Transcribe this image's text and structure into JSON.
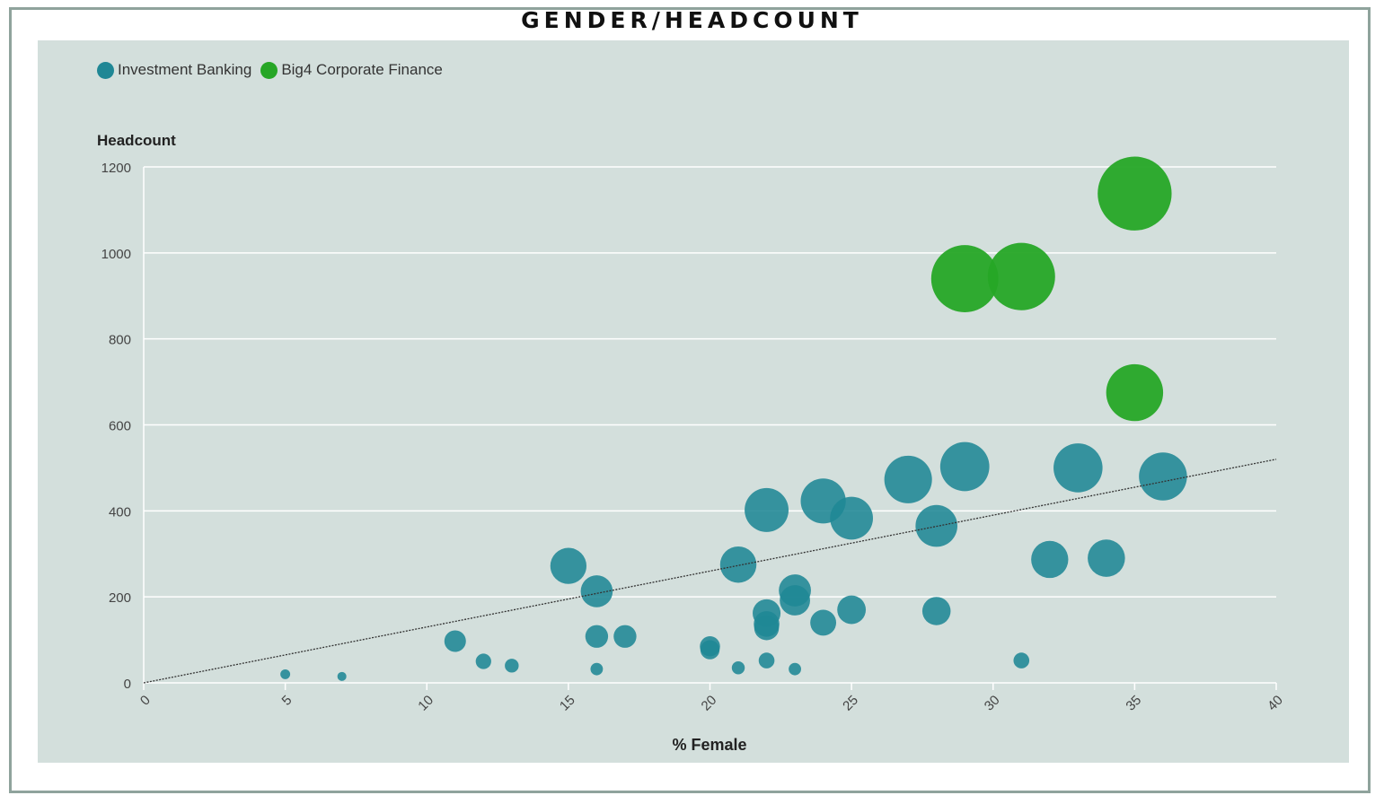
{
  "title": "GENDER/HEADCOUNT",
  "colors": {
    "investment_banking": "#1f8795",
    "big4": "#26a626",
    "trend": "#333333",
    "panel": "#d3dfdc",
    "grid": "#ffffff"
  },
  "chart_data": {
    "type": "scatter",
    "title": "GENDER/HEADCOUNT",
    "xlabel": "% Female",
    "ylabel": "Headcount",
    "xlim": [
      0,
      40
    ],
    "ylim": [
      0,
      1200
    ],
    "x_ticks": [
      "0",
      "5",
      "10",
      "15",
      "20",
      "25",
      "30",
      "35",
      "40"
    ],
    "y_ticks": [
      "0",
      "200",
      "400",
      "600",
      "800",
      "1000",
      "1200"
    ],
    "grid": true,
    "legend_position": "top-left",
    "bubble_size_encodes": "headcount",
    "trendline": {
      "x": [
        0,
        40
      ],
      "y": [
        0,
        520
      ]
    },
    "series": [
      {
        "name": "Investment Banking",
        "color": "#1f8795",
        "points": [
          {
            "x": 5,
            "y": 20
          },
          {
            "x": 7,
            "y": 15
          },
          {
            "x": 11,
            "y": 97
          },
          {
            "x": 12,
            "y": 50
          },
          {
            "x": 13,
            "y": 40
          },
          {
            "x": 15,
            "y": 272
          },
          {
            "x": 16,
            "y": 213
          },
          {
            "x": 16,
            "y": 108
          },
          {
            "x": 16,
            "y": 32
          },
          {
            "x": 17,
            "y": 108
          },
          {
            "x": 20,
            "y": 85
          },
          {
            "x": 20,
            "y": 77
          },
          {
            "x": 21,
            "y": 275
          },
          {
            "x": 21,
            "y": 35
          },
          {
            "x": 22,
            "y": 402
          },
          {
            "x": 22,
            "y": 162
          },
          {
            "x": 22,
            "y": 137
          },
          {
            "x": 22,
            "y": 128
          },
          {
            "x": 22,
            "y": 52
          },
          {
            "x": 23,
            "y": 215
          },
          {
            "x": 23,
            "y": 192
          },
          {
            "x": 23,
            "y": 32
          },
          {
            "x": 24,
            "y": 423
          },
          {
            "x": 24,
            "y": 140
          },
          {
            "x": 25,
            "y": 383
          },
          {
            "x": 25,
            "y": 170
          },
          {
            "x": 27,
            "y": 473
          },
          {
            "x": 28,
            "y": 365
          },
          {
            "x": 28,
            "y": 167
          },
          {
            "x": 29,
            "y": 503
          },
          {
            "x": 31,
            "y": 52
          },
          {
            "x": 32,
            "y": 287
          },
          {
            "x": 33,
            "y": 500
          },
          {
            "x": 34,
            "y": 290
          },
          {
            "x": 36,
            "y": 480
          }
        ]
      },
      {
        "name": "Big4 Corporate Finance",
        "color": "#26a626",
        "points": [
          {
            "x": 29,
            "y": 940
          },
          {
            "x": 31,
            "y": 945
          },
          {
            "x": 35,
            "y": 1138
          },
          {
            "x": 35,
            "y": 675
          }
        ]
      }
    ]
  }
}
